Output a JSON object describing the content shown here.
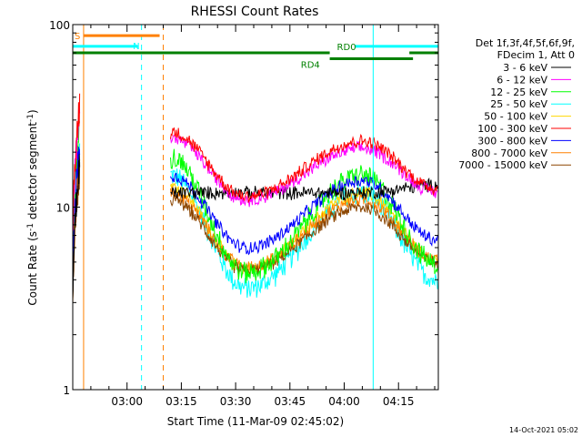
{
  "chart_data": {
    "type": "line",
    "title": "RHESSI Count Rates",
    "xlabel": "Start Time (11-Mar-09 02:45:02)",
    "ylabel_prefix": "Count Rate (s",
    "ylabel_mid": " detector segment",
    "ylabel_suffix": ")",
    "ylabel_exp": "-1",
    "yscale": "log",
    "ylim": [
      1,
      100
    ],
    "xlim_minutes": [
      0,
      101
    ],
    "x_tick_labels": [
      "03:00",
      "03:15",
      "03:30",
      "03:45",
      "04:00",
      "04:15"
    ],
    "x_tick_minutes": [
      15,
      30,
      45,
      60,
      75,
      90
    ],
    "y_tick_labels": [
      "1",
      "10",
      "100"
    ],
    "y_tick_values": [
      1,
      10,
      100
    ],
    "legend_header": [
      "Det 1f,3f,4f,5f,6f,9f,",
      "FDecim 1, Att 0"
    ],
    "legend_position": "right",
    "data_gap_minutes": [
      3,
      27
    ],
    "series": [
      {
        "name": "3 - 6 keV",
        "color": "#000000",
        "peak1": 12,
        "trough": 12,
        "peak2": 12
      },
      {
        "name": "6 - 12 keV",
        "color": "#ff00ff",
        "peak1": 24,
        "trough": 11,
        "peak2": 21
      },
      {
        "name": "12 - 25 keV",
        "color": "#00ff00",
        "peak1": 19,
        "trough": 4.4,
        "peak2": 15
      },
      {
        "name": "25 - 50 keV",
        "color": "#00ffff",
        "peak1": 15,
        "trough": 3.6,
        "peak2": 12
      },
      {
        "name": "50 - 100 keV",
        "color": "#ffd700",
        "peak1": 13,
        "trough": 4.6,
        "peak2": 12
      },
      {
        "name": "100 - 300 keV",
        "color": "#ff0000",
        "peak1": 26,
        "trough": 11.5,
        "peak2": 23
      },
      {
        "name": "300 - 800 keV",
        "color": "#0000ff",
        "peak1": 15,
        "trough": 6.0,
        "peak2": 14
      },
      {
        "name": "800 - 7000 keV",
        "color": "#ff8000",
        "peak1": 12,
        "trough": 4.7,
        "peak2": 11
      },
      {
        "name": "7000 - 15000 keV",
        "color": "#8b4500",
        "peak1": 11,
        "trough": 4.5,
        "peak2": 10
      }
    ],
    "annotations": [
      {
        "label": "N",
        "color": "#00ffff"
      },
      {
        "label": "S",
        "color": "#ff8000"
      },
      {
        "label": "RD0",
        "color": "#008000"
      },
      {
        "label": "RD4",
        "color": "#008000"
      }
    ],
    "flag_bars": [
      {
        "color": "#00ffff",
        "y_value": 76,
        "x_start": 0,
        "x_end": 18
      },
      {
        "color": "#00ffff",
        "y_value": 76,
        "x_start": 78,
        "x_end": 101
      },
      {
        "color": "#ff8000",
        "y_value": 87,
        "x_start": 3,
        "x_end": 24
      },
      {
        "color": "#008000",
        "y_value": 70,
        "x_start": 0,
        "x_end": 71
      },
      {
        "color": "#008000",
        "y_value": 70,
        "x_start": 93,
        "x_end": 101
      },
      {
        "color": "#008000",
        "y_value": 65,
        "x_start": 71,
        "x_end": 94
      }
    ],
    "vertical_lines": [
      {
        "color": "#00ffff",
        "x_minutes": 0,
        "style": "solid"
      },
      {
        "color": "#ff8000",
        "x_minutes": 3,
        "style": "solid"
      },
      {
        "color": "#00ffff",
        "x_minutes": 19,
        "style": "dashed"
      },
      {
        "color": "#ff8000",
        "x_minutes": 25,
        "style": "dashed"
      },
      {
        "color": "#00ffff",
        "x_minutes": 83,
        "style": "solid"
      },
      {
        "color": "#00ffff",
        "x_minutes": 101,
        "style": "dashed"
      }
    ]
  },
  "footer_date": "14-Oct-2021 05:02"
}
